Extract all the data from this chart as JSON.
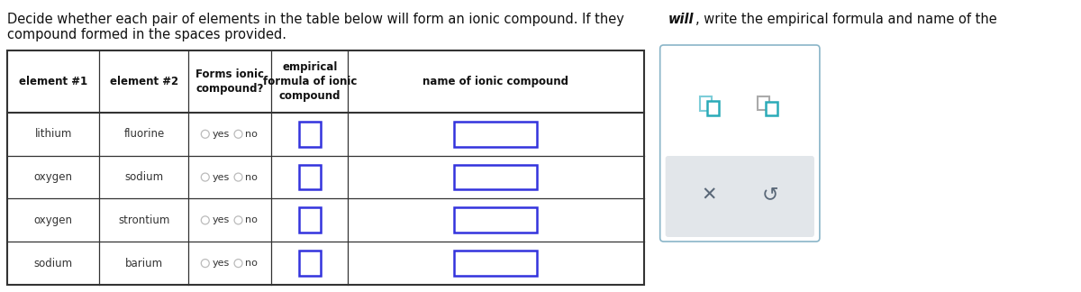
{
  "title_line1_pre": "Decide whether each pair of elements in the table below will form an ionic compound. If they ",
  "title_line1_italic": "will",
  "title_line1_post": ", write the empirical formula and name of the",
  "title_line2": "compound formed in the spaces provided.",
  "col_headers": [
    "element #1",
    "element #2",
    "Forms ionic\ncompound?",
    "empirical\nformula of ionic\ncompound",
    "name of ionic compound"
  ],
  "rows": [
    [
      "lithium",
      "fluorine"
    ],
    [
      "oxygen",
      "sodium"
    ],
    [
      "oxygen",
      "strontium"
    ],
    [
      "sodium",
      "barium"
    ]
  ],
  "bg_color": "#ffffff",
  "table_line_color": "#333333",
  "header_text_color": "#111111",
  "cell_text_color": "#333333",
  "radio_color": "#bbbbbb",
  "input_box_color": "#3333dd",
  "sidebar_border_color": "#8ab5c8",
  "sidebar_bg": "#ffffff",
  "gray_panel_color": "#e2e6ea",
  "icon_teal": "#2aabb8",
  "icon_gray": "#5a6878"
}
